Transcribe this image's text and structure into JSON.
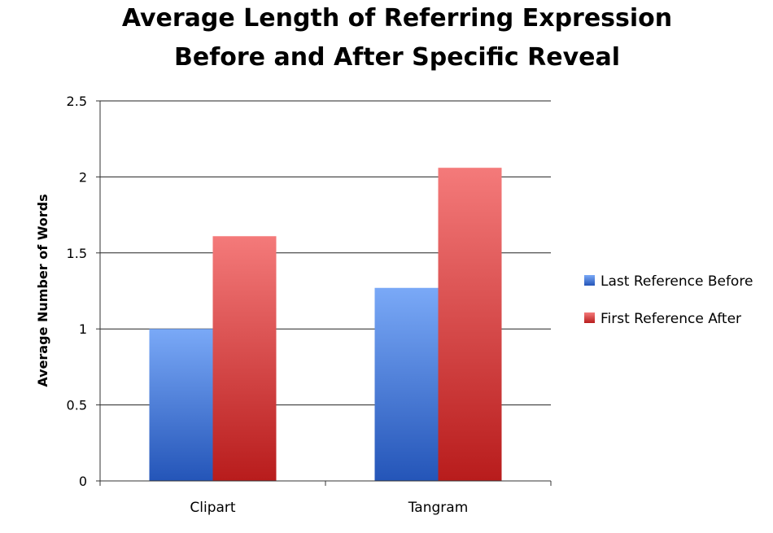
{
  "chart_data": {
    "type": "bar",
    "title_lines": [
      "Average Length of Referring Expression",
      "Before and After Specific Reveal"
    ],
    "ylabel": "Average Number of Words",
    "xlabel": "",
    "categories": [
      "Clipart",
      "Tangram"
    ],
    "series": [
      {
        "name": "Last Reference Before",
        "values": [
          1.0,
          1.27
        ],
        "color": "#4a7fd6"
      },
      {
        "name": "First Reference After",
        "values": [
          1.61,
          2.06
        ],
        "color": "#e03a3a"
      }
    ],
    "ylim": [
      0,
      2.5
    ],
    "yticks": [
      0,
      0.5,
      1,
      1.5,
      2,
      2.5
    ],
    "ytick_labels": [
      "0",
      "0.5",
      "1",
      "1.5",
      "2",
      "2.5"
    ],
    "grid": true,
    "legend_position": "right"
  }
}
